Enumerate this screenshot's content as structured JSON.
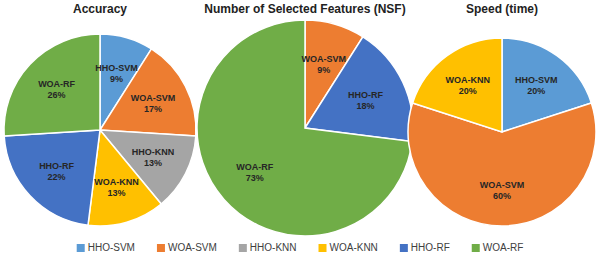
{
  "chart_data": [
    {
      "type": "pie",
      "title": "Accuracy",
      "categories": [
        "HHO-SVM",
        "WOA-SVM",
        "HHO-KNN",
        "WOA-KNN",
        "HHO-RF",
        "WOA-RF"
      ],
      "values": [
        9,
        17,
        13,
        13,
        22,
        26
      ],
      "value_labels": [
        "9%",
        "17%",
        "13%",
        "13%",
        "22%",
        "26%"
      ],
      "colors": [
        "#5b9bd5",
        "#ed7d31",
        "#a5a5a5",
        "#ffc000",
        "#4472c4",
        "#70ad47"
      ],
      "data_labels": true,
      "legend": "bottom"
    },
    {
      "type": "pie",
      "title": "Number of Selected Features (NSF)",
      "categories": [
        "WOA-SVM",
        "HHO-RF",
        "WOA-RF"
      ],
      "values": [
        9,
        18,
        73
      ],
      "value_labels": [
        "9%",
        "18%",
        "73%"
      ],
      "colors": [
        "#ed7d31",
        "#4472c4",
        "#70ad47"
      ],
      "data_labels": true
    },
    {
      "type": "pie",
      "title": "Speed (time)",
      "categories": [
        "HHO-SVM",
        "WOA-SVM",
        "WOA-KNN"
      ],
      "values": [
        20,
        60,
        20
      ],
      "value_labels": [
        "20%",
        "60%",
        "20%"
      ],
      "colors": [
        "#5b9bd5",
        "#ed7d31",
        "#ffc000"
      ],
      "data_labels": true
    }
  ]
}
